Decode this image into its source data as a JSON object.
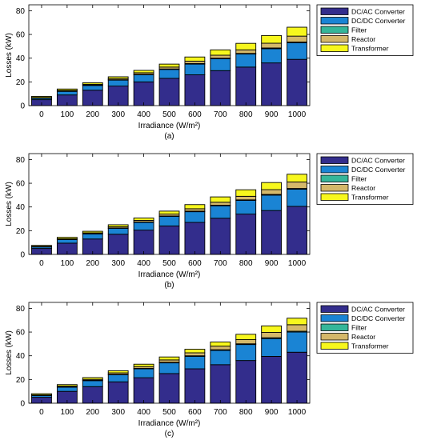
{
  "colors": {
    "dc_ac": "#332d8c",
    "dc_dc": "#1a84d4",
    "filter": "#35b69a",
    "reactor": "#d4b86a",
    "transformer": "#f7f71d"
  },
  "chart_data": [
    {
      "type": "bar",
      "stacked": true,
      "caption": "(a)",
      "xlabel": "Irradiance (W/m²)",
      "ylabel": "Losses (kW)",
      "ylim": [
        0,
        85
      ],
      "yticks": [
        0,
        20,
        40,
        60,
        80
      ],
      "legend_position": "top-right, outside",
      "categories": [
        "0",
        "100",
        "200",
        "300",
        "400",
        "500",
        "600",
        "700",
        "800",
        "900",
        "1000"
      ],
      "series": [
        {
          "name": "DC/AC Converter",
          "color": "#332d8c",
          "values": [
            5,
            9,
            13,
            16.5,
            20,
            23,
            26,
            29.5,
            32.5,
            36,
            39
          ]
        },
        {
          "name": "DC/DC Converter",
          "color": "#1a84d4",
          "values": [
            1.2,
            3,
            4,
            5,
            6,
            7.5,
            9,
            10,
            11,
            12,
            14
          ]
        },
        {
          "name": "Filter",
          "color": "#35b69a",
          "values": [
            0.2,
            0.2,
            0.3,
            0.3,
            0.4,
            0.4,
            0.5,
            0.5,
            0.5,
            0.6,
            0.6
          ]
        },
        {
          "name": "Reactor",
          "color": "#d4b86a",
          "values": [
            0.4,
            0.6,
            0.7,
            1,
            1.3,
            1.6,
            2,
            2.5,
            3,
            4,
            5
          ]
        },
        {
          "name": "Transformer",
          "color": "#f7f71d",
          "values": [
            1,
            1.2,
            1.3,
            1.5,
            2,
            2.5,
            3.5,
            4.5,
            5.5,
            6.5,
            7.5
          ]
        }
      ]
    },
    {
      "type": "bar",
      "stacked": true,
      "caption": "(b)",
      "xlabel": "Irradiance (W/m²)",
      "ylabel": "Losses (kW)",
      "ylim": [
        0,
        85
      ],
      "yticks": [
        0,
        20,
        40,
        60,
        80
      ],
      "legend_position": "top-right, outside",
      "categories": [
        "0",
        "100",
        "200",
        "300",
        "400",
        "500",
        "600",
        "700",
        "800",
        "900",
        "1000"
      ],
      "series": [
        {
          "name": "DC/AC Converter",
          "color": "#332d8c",
          "values": [
            5,
            9.5,
            13,
            17,
            20.5,
            24,
            27,
            30.5,
            34,
            37,
            40.5
          ]
        },
        {
          "name": "DC/DC Converter",
          "color": "#1a84d4",
          "values": [
            1.3,
            3,
            4.2,
            5,
            6.5,
            8,
            9,
            10.5,
            11.5,
            13,
            14.5
          ]
        },
        {
          "name": "Filter",
          "color": "#35b69a",
          "values": [
            0.2,
            0.2,
            0.3,
            0.3,
            0.4,
            0.4,
            0.5,
            0.5,
            0.5,
            0.6,
            0.6
          ]
        },
        {
          "name": "Reactor",
          "color": "#d4b86a",
          "values": [
            0.3,
            0.5,
            0.7,
            1,
            1.3,
            1.6,
            2,
            2.5,
            3,
            4,
            5.5
          ]
        },
        {
          "name": "Transformer",
          "color": "#f7f71d",
          "values": [
            0.8,
            1.2,
            1.3,
            1.7,
            2,
            2.5,
            3.5,
            4.5,
            5.5,
            6,
            6.5
          ]
        }
      ]
    },
    {
      "type": "bar",
      "stacked": true,
      "caption": "(c)",
      "xlabel": "Irradiance (W/m²)",
      "ylabel": "Losses (kW)",
      "ylim": [
        0,
        85
      ],
      "yticks": [
        0,
        20,
        40,
        60,
        80
      ],
      "legend_position": "top-right, outside",
      "categories": [
        "0",
        "100",
        "200",
        "300",
        "400",
        "500",
        "600",
        "700",
        "800",
        "900",
        "1000"
      ],
      "series": [
        {
          "name": "DC/AC Converter",
          "color": "#332d8c",
          "values": [
            5,
            10,
            14,
            18,
            21.5,
            25,
            29,
            32.5,
            36,
            39.5,
            43
          ]
        },
        {
          "name": "DC/DC Converter",
          "color": "#1a84d4",
          "values": [
            1.5,
            3.5,
            5,
            6,
            7.5,
            9,
            10.5,
            12,
            13.5,
            15,
            17
          ]
        },
        {
          "name": "Filter",
          "color": "#35b69a",
          "values": [
            0.2,
            0.3,
            0.3,
            0.4,
            0.4,
            0.5,
            0.5,
            0.6,
            0.6,
            0.7,
            0.7
          ]
        },
        {
          "name": "Reactor",
          "color": "#d4b86a",
          "values": [
            0.3,
            0.6,
            0.8,
            1.2,
            1.5,
            2,
            2.5,
            3,
            3.5,
            4.5,
            5.5
          ]
        },
        {
          "name": "Transformer",
          "color": "#f7f71d",
          "values": [
            1,
            1.3,
            1.5,
            1.8,
            2,
            2.5,
            3,
            3.5,
            4.5,
            5.5,
            5.5
          ]
        }
      ]
    }
  ]
}
